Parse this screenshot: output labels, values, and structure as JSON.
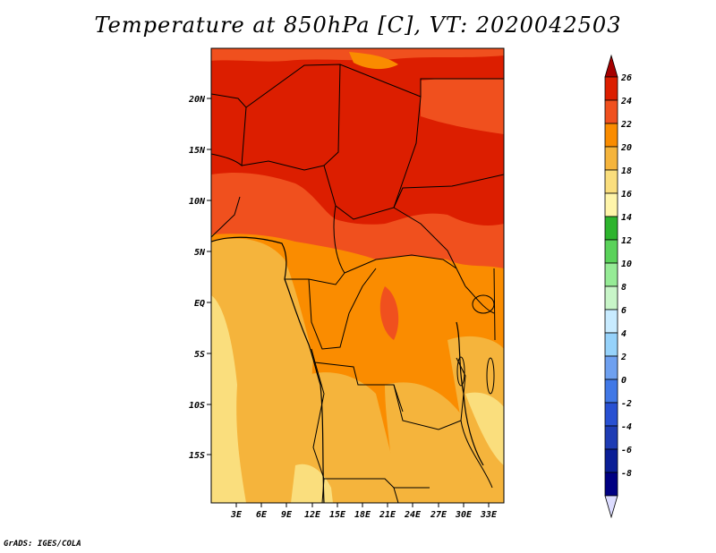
{
  "title": "Temperature at 850hPa [C], VT: 2020042503",
  "footer": "GrADS: IGES/COLA",
  "map": {
    "lat_labels": [
      "20N",
      "15N",
      "10N",
      "5N",
      "EQ",
      "5S",
      "10S",
      "15S"
    ],
    "lon_labels": [
      "3E",
      "6E",
      "9E",
      "12E",
      "15E",
      "18E",
      "21E",
      "24E",
      "27E",
      "30E",
      "33E"
    ]
  },
  "colorbar": {
    "levels": [
      "26",
      "24",
      "22",
      "20",
      "18",
      "16",
      "14",
      "12",
      "10",
      "8",
      "6",
      "4",
      "2",
      "0",
      "-2",
      "-4",
      "-6",
      "-8"
    ],
    "colors": [
      "#a50000",
      "#dc1e00",
      "#f0501e",
      "#fa8c00",
      "#f5b43c",
      "#fade7d",
      "#fff5aa",
      "#2db42d",
      "#5ad25a",
      "#96eb96",
      "#c8f5c8",
      "#c8ebff",
      "#96d2fa",
      "#6ea0f0",
      "#4178e6",
      "#2850d2",
      "#1e3cb4",
      "#0a1e96",
      "#000082",
      "#dcdcff"
    ]
  }
}
